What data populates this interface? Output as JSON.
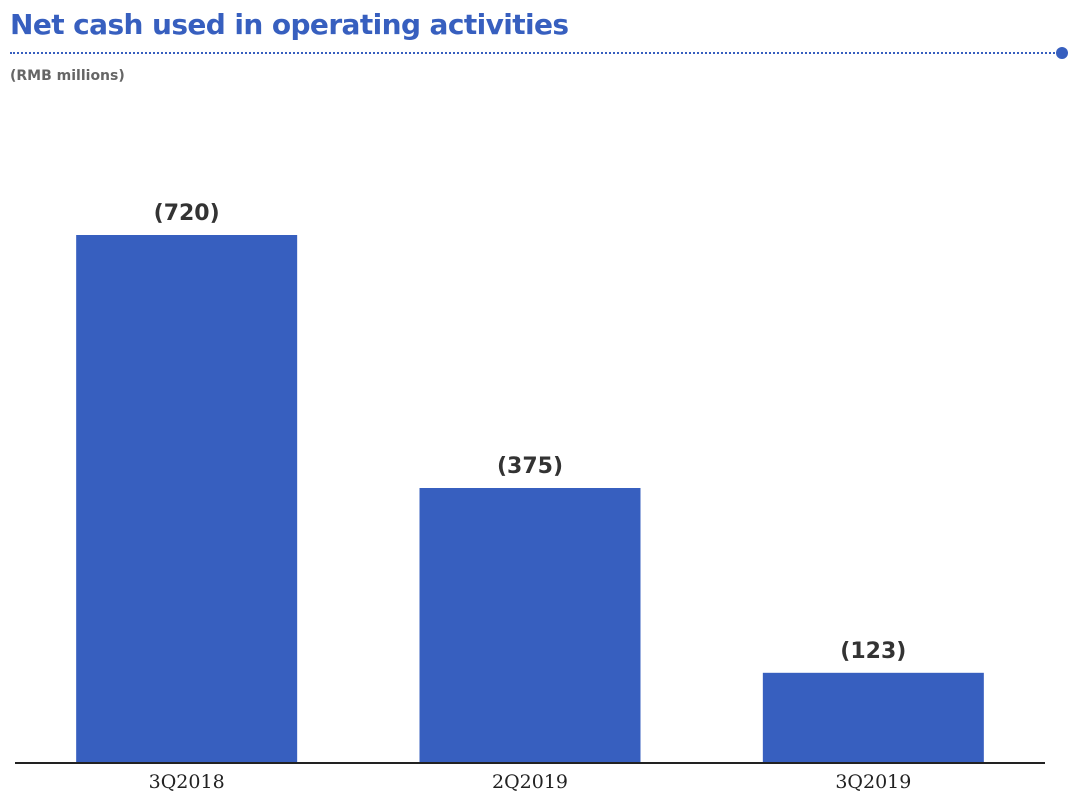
{
  "header": {
    "title": "Net cash used in operating activities",
    "unit": "(RMB millions)"
  },
  "colors": {
    "accent": "#375fbf",
    "bar": "#375fbf",
    "label": "#333333",
    "axis": "#222222"
  },
  "chart_data": {
    "type": "bar",
    "title": "Net cash used in operating activities",
    "subtitle": "(RMB millions)",
    "categories": [
      "3Q2018",
      "2Q2019",
      "3Q2019"
    ],
    "values": [
      720,
      375,
      123
    ],
    "value_labels": [
      "(720)",
      "(375)",
      "(123)"
    ],
    "xlabel": "",
    "ylabel": "",
    "ylim": [
      0,
      900
    ],
    "grid": false,
    "legend": "none"
  }
}
